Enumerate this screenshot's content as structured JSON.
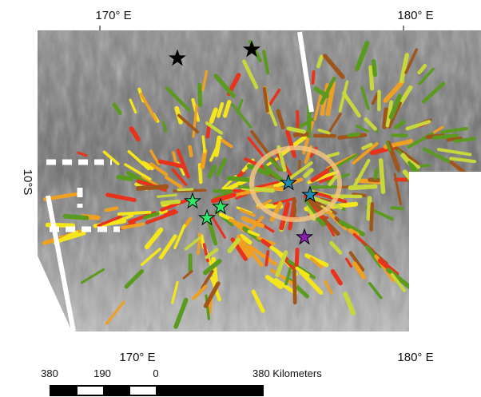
{
  "map": {
    "top_labels": [
      "170° E",
      "180° E"
    ],
    "bottom_labels": [
      "170° E",
      "180° E"
    ],
    "left_label": "10°S",
    "scale_bar": {
      "labels": [
        "380",
        "190",
        "0",
        "380 Kilometers"
      ]
    }
  }
}
